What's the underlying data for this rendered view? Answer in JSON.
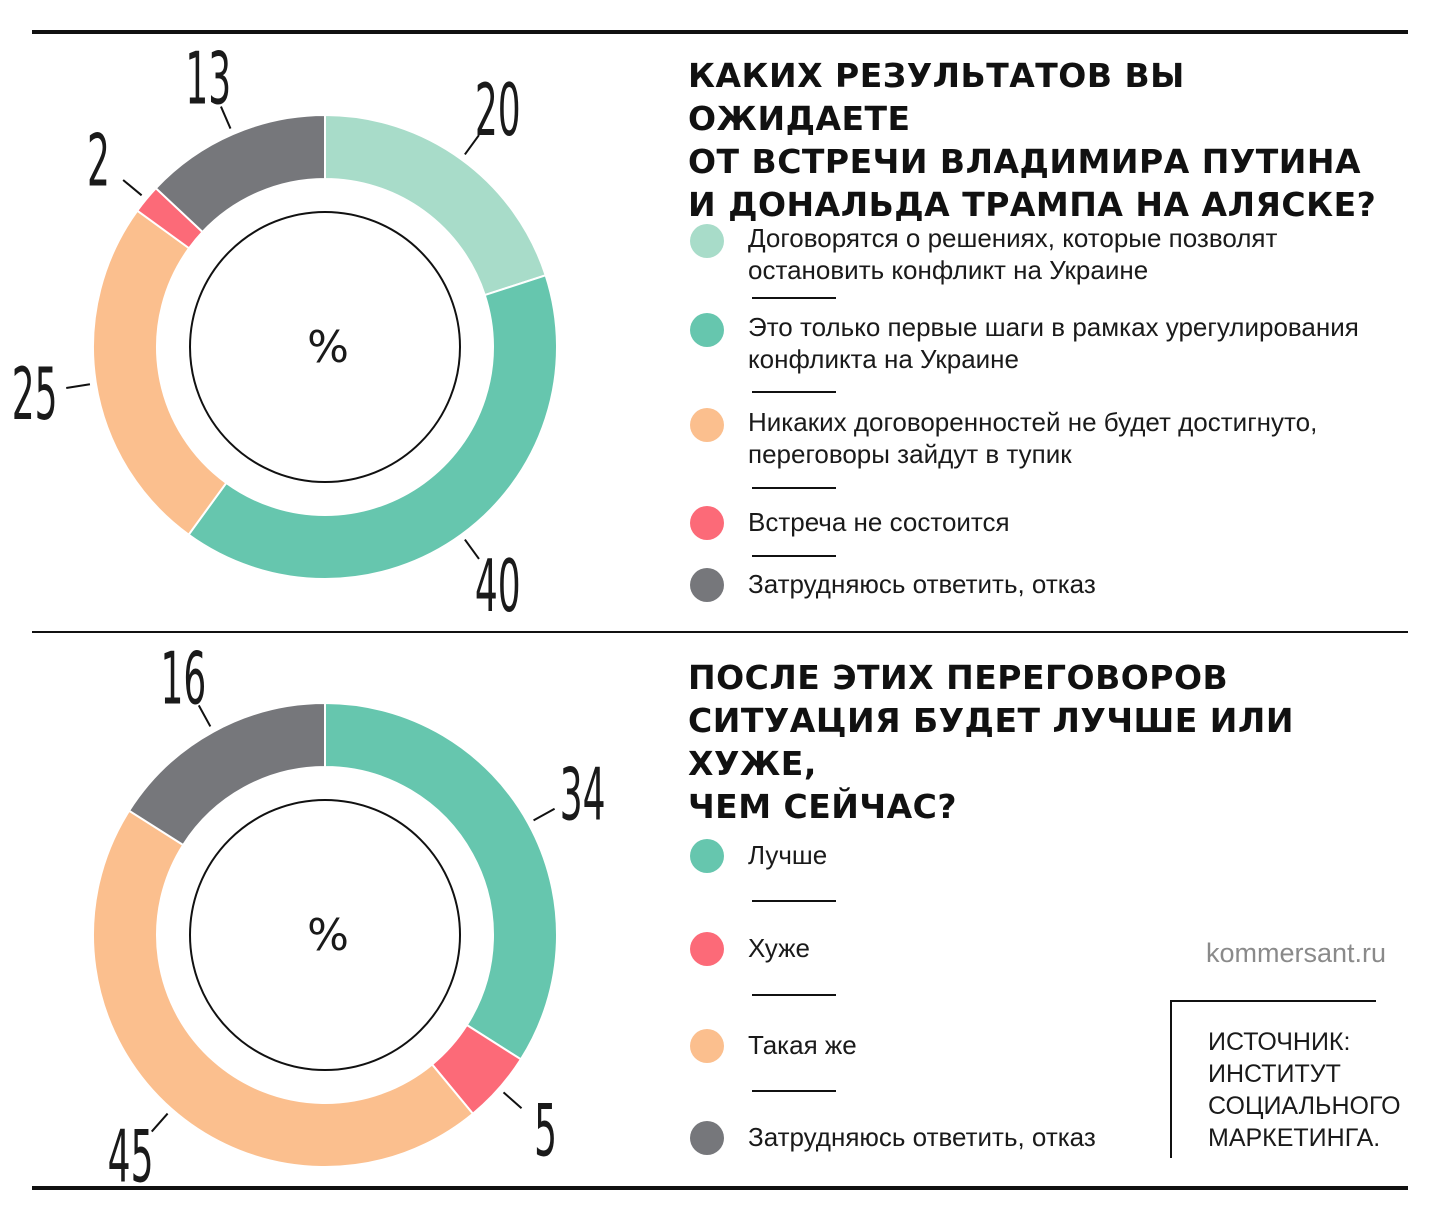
{
  "charts": [
    {
      "title": "КАКИХ РЕЗУЛЬТАТОВ ВЫ ОЖИДАЕТЕ\nОТ ВСТРЕЧИ ВЛАДИМИРА ПУТИНА\nИ ДОНАЛЬДА ТРАМПА НА АЛЯСКЕ?",
      "center_label": "%",
      "legend": [
        {
          "label": "Договорятся о решениях, которые позволят\nостановить конфликт на Украине",
          "color": "#a8dcc9"
        },
        {
          "label": "Это только первые шаги в рамках урегулирования\nконфликта на Украине",
          "color": "#66c6ae"
        },
        {
          "label": "Никаких договоренностей не будет достигнуто,\nпереговоры зайдут в тупик",
          "color": "#fbbf8e"
        },
        {
          "label": "Встреча не состоится",
          "color": "#fc6a78"
        },
        {
          "label": "Затрудняюсь ответить, отказ",
          "color": "#76777b"
        }
      ]
    },
    {
      "title": "ПОСЛЕ ЭТИХ ПЕРЕГОВОРОВ\nСИТУАЦИЯ БУДЕТ ЛУЧШЕ ИЛИ ХУЖЕ,\nЧЕМ СЕЙЧАС?",
      "center_label": "%",
      "legend": [
        {
          "label": "Лучше",
          "color": "#66c6ae"
        },
        {
          "label": "Хуже",
          "color": "#fc6a78"
        },
        {
          "label": "Такая же",
          "color": "#fbbf8e"
        },
        {
          "label": "Затрудняюсь ответить, отказ",
          "color": "#76777b"
        }
      ]
    }
  ],
  "chart_data": [
    {
      "type": "pie",
      "title": "КАКИХ РЕЗУЛЬТАТОВ ВЫ ОЖИДАЕТЕ ОТ ВСТРЕЧИ ВЛАДИМИРА ПУТИНА И ДОНАЛЬДА ТРАМПА НА АЛЯСКЕ?",
      "unit": "%",
      "categories": [
        "Договорятся о решениях, которые позволят остановить конфликт на Украине",
        "Это только первые шаги в рамках урегулирования конфликта на Украине",
        "Никаких договоренностей не будет достигнуто, переговоры зайдут в тупик",
        "Встреча не состоится",
        "Затрудняюсь ответить, отказ"
      ],
      "values": [
        20,
        40,
        25,
        2,
        13
      ],
      "colors": [
        "#a8dcc9",
        "#66c6ae",
        "#fbbf8e",
        "#fc6a78",
        "#76777b"
      ]
    },
    {
      "type": "pie",
      "title": "ПОСЛЕ ЭТИХ ПЕРЕГОВОРОВ СИТУАЦИЯ БУДЕТ ЛУЧШЕ ИЛИ ХУЖЕ, ЧЕМ СЕЙЧАС?",
      "unit": "%",
      "categories": [
        "Лучше",
        "Хуже",
        "Такая же",
        "Затрудняюсь ответить, отказ"
      ],
      "values": [
        34,
        5,
        45,
        16
      ],
      "colors": [
        "#66c6ae",
        "#fc6a78",
        "#fbbf8e",
        "#76777b"
      ]
    }
  ],
  "footer": {
    "site": "kommersant.ru",
    "source": "ИСТОЧНИК:\nИНСТИТУТ\nСОЦИАЛЬНОГО\nМАРКЕТИНГА."
  }
}
